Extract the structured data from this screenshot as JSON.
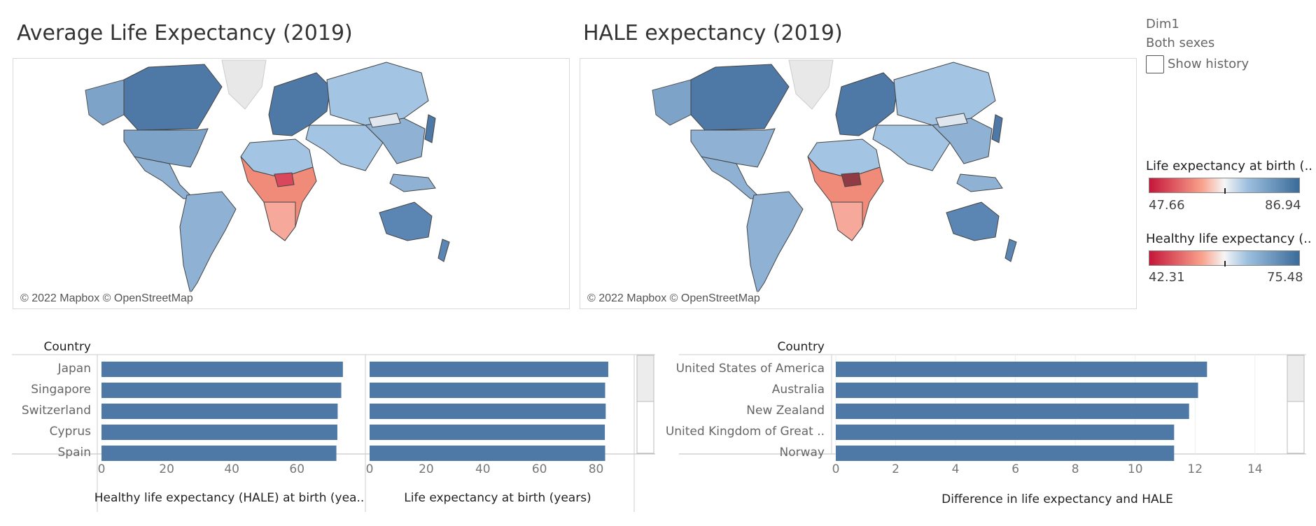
{
  "titles": {
    "left_map": "Average Life Expectancy (2019)",
    "right_map": "HALE expectancy (2019)"
  },
  "attribution": "© 2022 Mapbox © OpenStreetMap",
  "filters": {
    "dim_label": "Dim1",
    "dim_value": "Both sexes",
    "show_history_label": "Show history",
    "show_history_checked": false
  },
  "legends": [
    {
      "title": "Life expectancy at birth (..",
      "min": "47.66",
      "max": "86.94"
    },
    {
      "title": "Healthy life expectancy (..",
      "min": "42.31",
      "max": "75.48"
    }
  ],
  "colors": {
    "bar": "#4e79a7",
    "diverging_low": "#c5163a",
    "diverging_mid": "#f5f5f5",
    "diverging_high": "#3a6b99",
    "land_default": "#a3c4e2",
    "ocean": "#ffffff"
  },
  "chart_data": [
    {
      "type": "bar",
      "orientation": "horizontal",
      "row_header": "Country",
      "categories": [
        "Japan",
        "Singapore",
        "Switzerland",
        "Cyprus",
        "Spain"
      ],
      "series": [
        {
          "name": "Healthy life expectancy (HALE) at birth (yea..",
          "values": [
            74.1,
            73.6,
            72.5,
            72.4,
            72.1
          ]
        },
        {
          "name": "Life expectancy at birth (years)",
          "values": [
            84.3,
            83.2,
            83.4,
            83.1,
            83.2
          ]
        }
      ],
      "panels": [
        {
          "xlabel": "Healthy life expectancy (HALE) at birth (yea..",
          "xlim": [
            0,
            78
          ],
          "ticks": [
            "0",
            "20",
            "40",
            "60"
          ]
        },
        {
          "xlabel": "Life expectancy at birth (years)",
          "xlim": [
            0,
            90
          ],
          "ticks": [
            "0",
            "20",
            "40",
            "60",
            "80"
          ]
        }
      ]
    },
    {
      "type": "bar",
      "orientation": "horizontal",
      "row_header": "Country",
      "categories": [
        "United States of America",
        "Australia",
        "New Zealand",
        "United Kingdom of Great ..",
        "Norway"
      ],
      "values": [
        12.4,
        12.1,
        11.8,
        11.3,
        11.3
      ],
      "xlabel": "Difference in life expectancy and HALE",
      "xlim": [
        0,
        14.8
      ],
      "ticks": [
        "0",
        "2",
        "4",
        "6",
        "8",
        "10",
        "12",
        "14"
      ]
    }
  ]
}
